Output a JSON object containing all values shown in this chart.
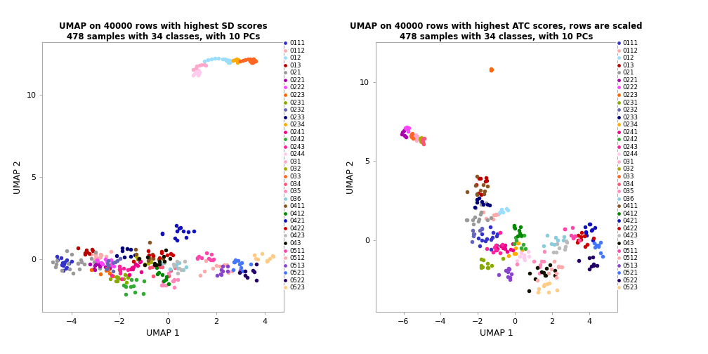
{
  "title1": "UMAP on 40000 rows with highest SD scores\n478 samples with 34 classes, with 10 PCs",
  "title2": "UMAP on 40000 rows with highest ATC scores, rows are scaled\n478 samples with 34 classes, with 10 PCs",
  "xlabel": "UMAP 1",
  "ylabel": "UMAP 2",
  "classes": [
    "0111",
    "0112",
    "012",
    "013",
    "021",
    "0221",
    "0222",
    "0223",
    "0231",
    "0232",
    "0233",
    "0234",
    "0241",
    "0242",
    "0243",
    "0244",
    "031",
    "032",
    "033",
    "034",
    "035",
    "036",
    "0411",
    "0412",
    "0421",
    "0422",
    "0423",
    "043",
    "0511",
    "0512",
    "0513",
    "0521",
    "0522",
    "0523"
  ],
  "class_colors": {
    "0111": "#3333CC",
    "0112": "#FFAAAA",
    "012": "#99DDFF",
    "013": "#BB0000",
    "021": "#999999",
    "0221": "#AA00AA",
    "0222": "#FF44FF",
    "0223": "#FF6600",
    "0231": "#88AA00",
    "0232": "#6666BB",
    "0233": "#000077",
    "0234": "#FFAA00",
    "0241": "#EE0088",
    "0242": "#33AA33",
    "0243": "#FF2299",
    "0244": "#FFCCEE",
    "031": "#FFAACC",
    "032": "#AAAA00",
    "033": "#FF6622",
    "034": "#FF5577",
    "035": "#FF88BB",
    "036": "#88CCDD",
    "0411": "#885522",
    "0412": "#008800",
    "0421": "#1111BB",
    "0422": "#CC0000",
    "0423": "#BBBBBB",
    "043": "#111100",
    "0511": "#FF44AA",
    "0512": "#FFAAAA",
    "0513": "#8844CC",
    "0521": "#4477FF",
    "0522": "#220066",
    "0523": "#FFCC88"
  },
  "plot1_xlim": [
    -5.2,
    4.8
  ],
  "plot1_ylim": [
    -3.2,
    13.2
  ],
  "plot1_xticks": [
    -4,
    -2,
    0,
    2,
    4
  ],
  "plot1_yticks": [
    0,
    5,
    10
  ],
  "plot2_xlim": [
    -7.5,
    5.5
  ],
  "plot2_ylim": [
    -4.5,
    12.5
  ],
  "plot2_xticks": [
    -6,
    -4,
    -2,
    0,
    2,
    4
  ],
  "plot2_yticks": [
    0,
    5,
    10
  ],
  "marker_size": 16,
  "spine_color": "#AAAAAA",
  "bg_color": "#FFFFFF"
}
